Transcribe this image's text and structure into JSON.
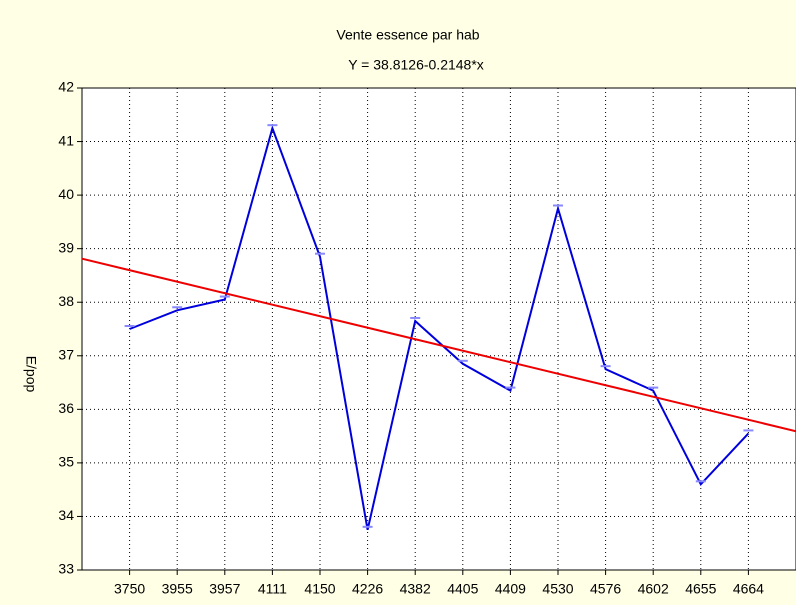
{
  "chart_data": {
    "type": "line",
    "title": "Vente essence par hab",
    "subtitle": "Y  = 38.8126-0.2148*x",
    "y_label": "E/pop",
    "categories": [
      "3750",
      "3955",
      "3957",
      "4111",
      "4150",
      "4226",
      "4382",
      "4405",
      "4409",
      "4530",
      "4576",
      "4602",
      "4655",
      "4664"
    ],
    "series": [
      {
        "name": "E/pop",
        "color": "#0000dd",
        "values": [
          37.5,
          37.85,
          38.05,
          41.25,
          38.85,
          33.75,
          37.65,
          36.85,
          36.35,
          39.75,
          36.75,
          36.35,
          34.6,
          35.55
        ]
      }
    ],
    "trend": {
      "intercept": 38.8126,
      "slope": -0.2148,
      "color": "#ee0000"
    },
    "ylim": [
      33,
      42
    ],
    "yticks": [
      33,
      34,
      35,
      36,
      37,
      38,
      39,
      40,
      41,
      42
    ],
    "grid": true
  }
}
